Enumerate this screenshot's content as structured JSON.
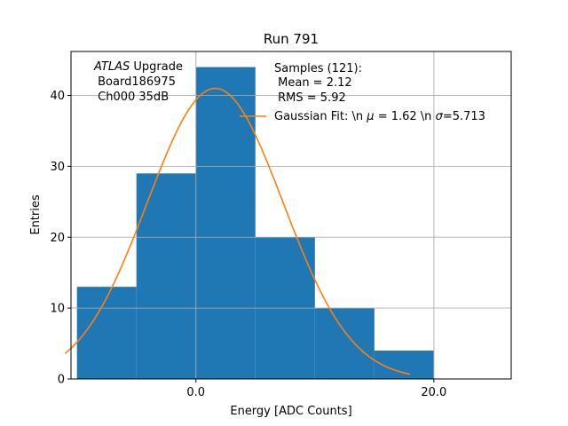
{
  "chart_data": {
    "type": "bar",
    "title": "Run 791",
    "xlabel": "Energy [ADC Counts]",
    "ylabel": "Entries",
    "xlim": [
      -10.5,
      26.5
    ],
    "ylim": [
      0,
      46.2
    ],
    "xticks": [
      0,
      20
    ],
    "xtick_labels": [
      "0.0",
      "20.0"
    ],
    "yticks": [
      0,
      10,
      20,
      30,
      40
    ],
    "ytick_labels": [
      "0",
      "10",
      "20",
      "30",
      "40"
    ],
    "grid": true,
    "bins": [
      {
        "x0": -10,
        "x1": -5,
        "value": 13
      },
      {
        "x0": -5,
        "x1": 0,
        "value": 29
      },
      {
        "x0": 0,
        "x1": 5,
        "value": 44
      },
      {
        "x0": 5,
        "x1": 10,
        "value": 20
      },
      {
        "x0": 10,
        "x1": 15,
        "value": 10
      },
      {
        "x0": 15,
        "x1": 20,
        "value": 4
      }
    ],
    "fit": {
      "label": "Gaussian Fit: \\n $\\mu$ = 1.62 \\n $\\sigma$=5.713",
      "mu": 1.62,
      "sigma": 5.713,
      "amplitude": 41,
      "x_range": [
        -11,
        18
      ]
    },
    "colors": {
      "bars": "#1f77b4",
      "fit": "#ff7f0e",
      "grid": "#b0b0b0"
    },
    "annotation": {
      "atlas": "ATLAS",
      "upgrade": " Upgrade",
      "board": " Board186975",
      "channel": " Ch000 35dB"
    },
    "samples": {
      "header": "Samples (121):",
      "mean": " Mean = 2.12",
      "rms": " RMS = 5.92"
    },
    "legend_location": "upper right"
  }
}
